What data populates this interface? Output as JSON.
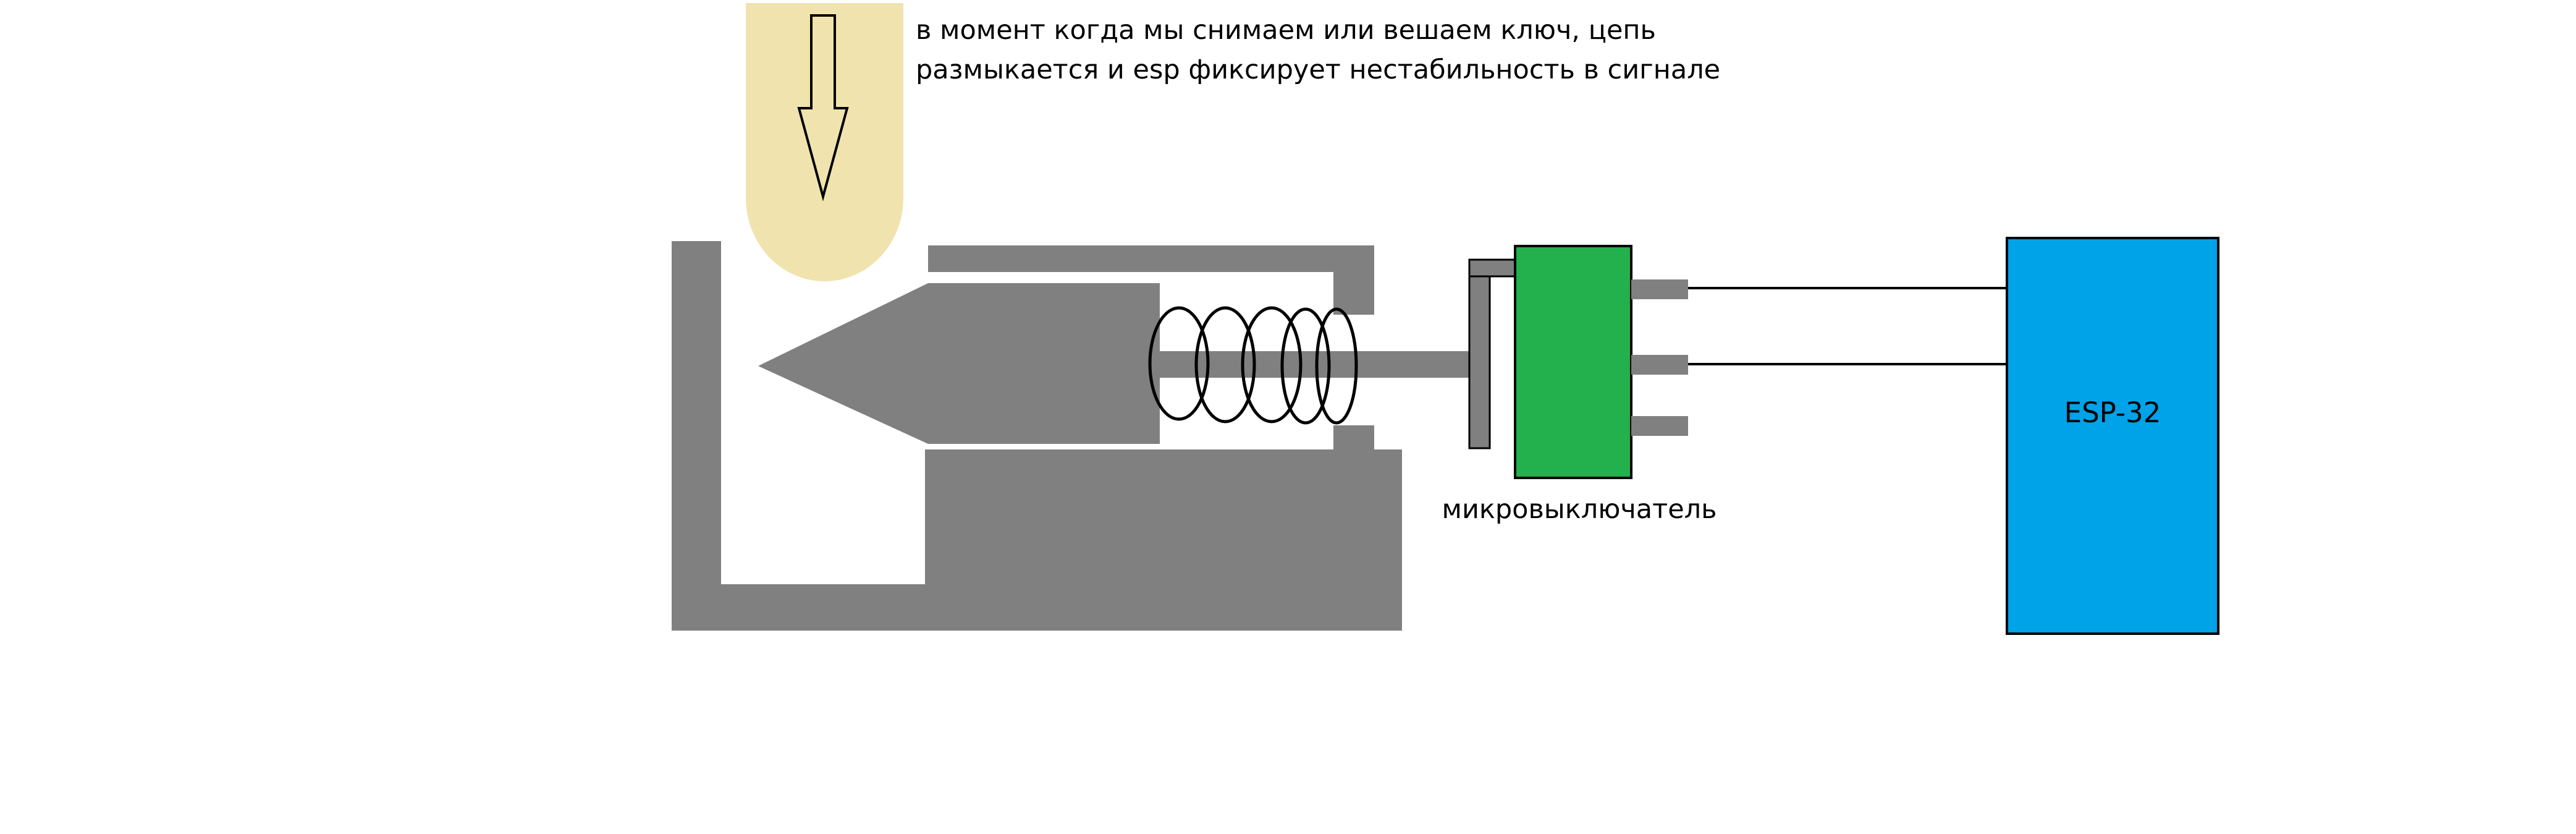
{
  "caption": {
    "line1": "в момент когда мы снимаем или вешаем ключ, цепь",
    "line2": "размыкается и esp фиксирует нестабильность в сигнале"
  },
  "labels": {
    "microswitch": "микровыключатель",
    "esp": "ESP-32"
  },
  "colors": {
    "housing": "#808080",
    "key": "#f0e3ae",
    "microswitch": "#22b14c",
    "esp": "#00a2e8",
    "outline": "#000000"
  },
  "icons": {
    "key": "rounded-key-blade",
    "arrow": "down-arrow",
    "spring": "coil-spring"
  }
}
